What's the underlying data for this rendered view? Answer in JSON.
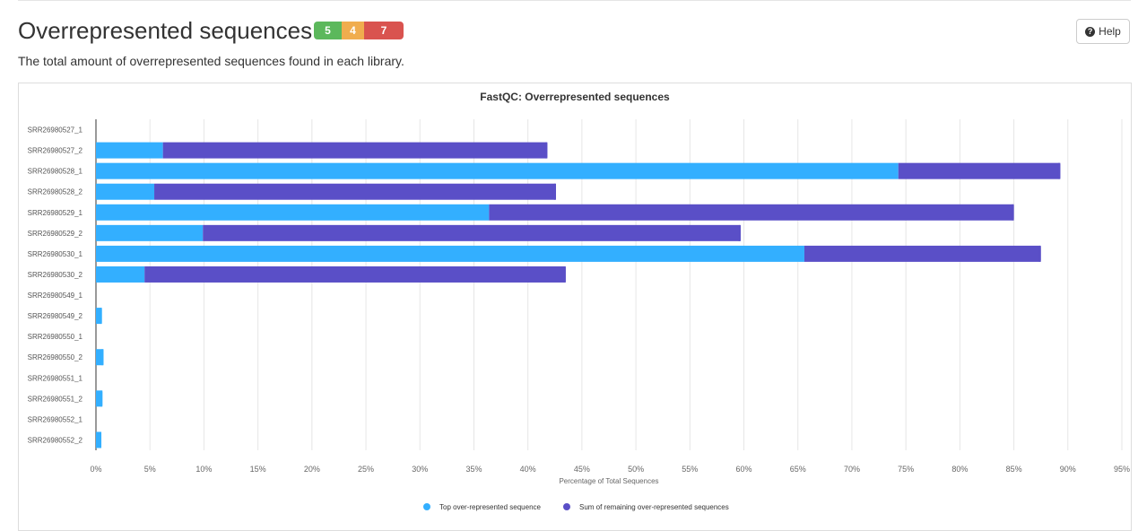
{
  "section": {
    "title": "Overrepresented sequences",
    "description": "The total amount of overrepresented sequences found in each library.",
    "status_badges": {
      "pass": "5",
      "warn": "4",
      "fail": "7"
    },
    "help_label": "Help"
  },
  "colors": {
    "top": "#33afff",
    "remaining": "#5a4fc7",
    "pass": "#5cb85c",
    "warn": "#f0ad4e",
    "fail": "#d9534f"
  },
  "chart_data": {
    "type": "bar",
    "orientation": "horizontal",
    "stacked": true,
    "title": "FastQC: Overrepresented sequences",
    "xlabel": "Percentage of Total Sequences",
    "ylabel": "",
    "xlim": [
      0,
      95
    ],
    "xticks": [
      "0%",
      "5%",
      "10%",
      "15%",
      "20%",
      "25%",
      "30%",
      "35%",
      "40%",
      "45%",
      "50%",
      "55%",
      "60%",
      "65%",
      "70%",
      "75%",
      "80%",
      "85%",
      "90%",
      "95%"
    ],
    "grid": true,
    "legend_position": "bottom",
    "categories": [
      "SRR26980527_1",
      "SRR26980527_2",
      "SRR26980528_1",
      "SRR26980528_2",
      "SRR26980529_1",
      "SRR26980529_2",
      "SRR26980530_1",
      "SRR26980530_2",
      "SRR26980549_1",
      "SRR26980549_2",
      "SRR26980550_1",
      "SRR26980550_2",
      "SRR26980551_1",
      "SRR26980551_2",
      "SRR26980552_1",
      "SRR26980552_2"
    ],
    "series": [
      {
        "name": "Top over-represented sequence",
        "values": [
          0,
          6.2,
          74.3,
          5.4,
          36.4,
          9.9,
          65.6,
          4.5,
          0,
          0.55,
          0,
          0.7,
          0,
          0.6,
          0,
          0.5
        ]
      },
      {
        "name": "Sum of remaining over-represented sequences",
        "values": [
          0,
          35.6,
          15.0,
          37.2,
          48.6,
          49.8,
          21.9,
          39.0,
          0,
          0,
          0,
          0,
          0,
          0,
          0,
          0
        ]
      }
    ]
  }
}
